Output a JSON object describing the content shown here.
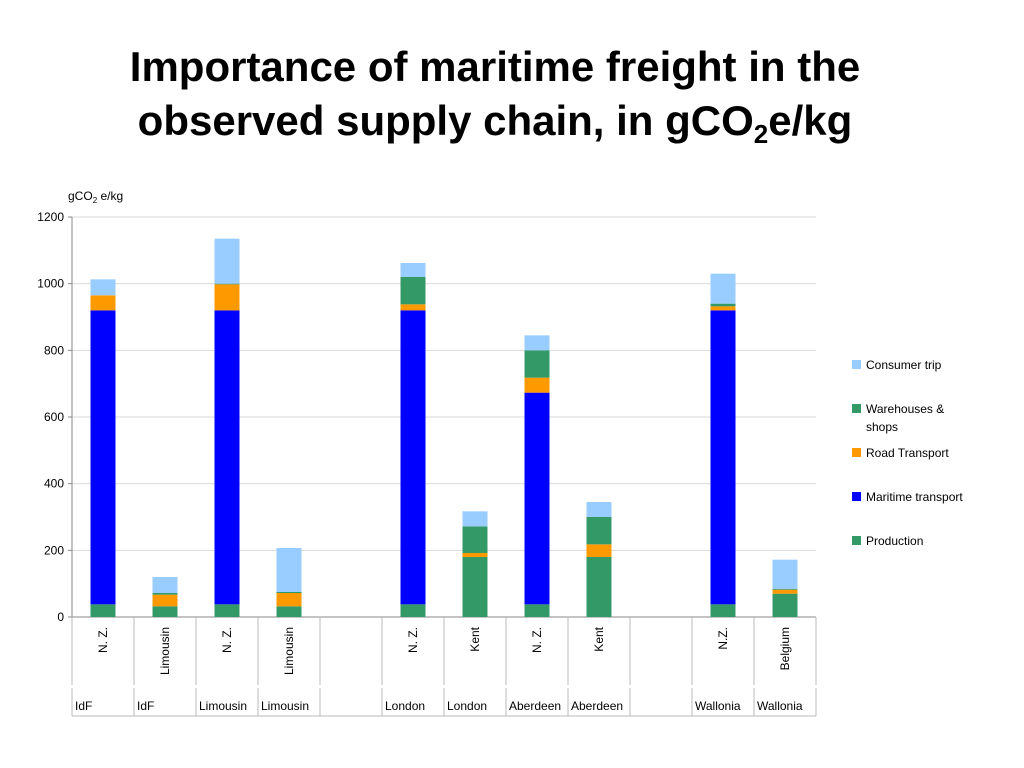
{
  "title": {
    "line1": "Importance of maritime freight in the",
    "line2_pre": "observed supply chain, in gCO",
    "line2_sub": "2",
    "line2_post": "e/kg"
  },
  "chart_data": {
    "type": "bar",
    "stacked": true,
    "ylabel_pre": "gCO",
    "ylabel_sub": "2",
    "ylabel_post": " e/kg",
    "ylim": [
      0,
      1200
    ],
    "yticks": [
      0,
      200,
      400,
      600,
      800,
      1000,
      1200
    ],
    "grid": true,
    "legend_position": "right",
    "groups": [
      {
        "x1": "N. Z.",
        "x2": "IdF"
      },
      {
        "x1": "Limousin",
        "x2": "IdF"
      },
      {
        "x1": "N. Z.",
        "x2": "Limousin"
      },
      {
        "x1": "Limousin",
        "x2": "Limousin"
      },
      {
        "x1": "",
        "x2": ""
      },
      {
        "x1": "N. Z.",
        "x2": "London"
      },
      {
        "x1": "Kent",
        "x2": "London"
      },
      {
        "x1": "N. Z.",
        "x2": "Aberdeen"
      },
      {
        "x1": "Kent",
        "x2": "Aberdeen"
      },
      {
        "x1": "",
        "x2": ""
      },
      {
        "x1": "N.Z.",
        "x2": "Wallonia"
      },
      {
        "x1": "Belgium",
        "x2": "Wallonia"
      }
    ],
    "series": [
      {
        "name": "Production",
        "color": "#339966",
        "values": [
          38,
          32,
          38,
          32,
          null,
          38,
          180,
          38,
          180,
          null,
          38,
          70
        ]
      },
      {
        "name": "Maritime transport",
        "color": "#0000FF",
        "values": [
          882,
          0,
          882,
          0,
          null,
          882,
          0,
          635,
          0,
          null,
          882,
          0
        ]
      },
      {
        "name": "Road Transport",
        "color": "#FF9900",
        "values": [
          45,
          35,
          78,
          40,
          null,
          18,
          12,
          45,
          38,
          null,
          12,
          12
        ]
      },
      {
        "name": "Warehouses & shops",
        "color": "#339966",
        "values": [
          0,
          5,
          2,
          3,
          null,
          82,
          80,
          82,
          82,
          null,
          8,
          2
        ]
      },
      {
        "name": "Consumer trip",
        "color": "#99CCFF",
        "values": [
          48,
          48,
          135,
          132,
          null,
          42,
          45,
          45,
          45,
          null,
          90,
          88
        ]
      }
    ],
    "legend": [
      {
        "label_lines": [
          "Consumer trip"
        ],
        "color": "#99CCFF"
      },
      {
        "label_lines": [
          "Warehouses &",
          "shops"
        ],
        "color": "#339966"
      },
      {
        "label_lines": [
          "Road Transport"
        ],
        "color": "#FF9900"
      },
      {
        "label_lines": [
          "Maritime transport"
        ],
        "color": "#0000FF"
      },
      {
        "label_lines": [
          "Production"
        ],
        "color": "#339966"
      }
    ]
  }
}
